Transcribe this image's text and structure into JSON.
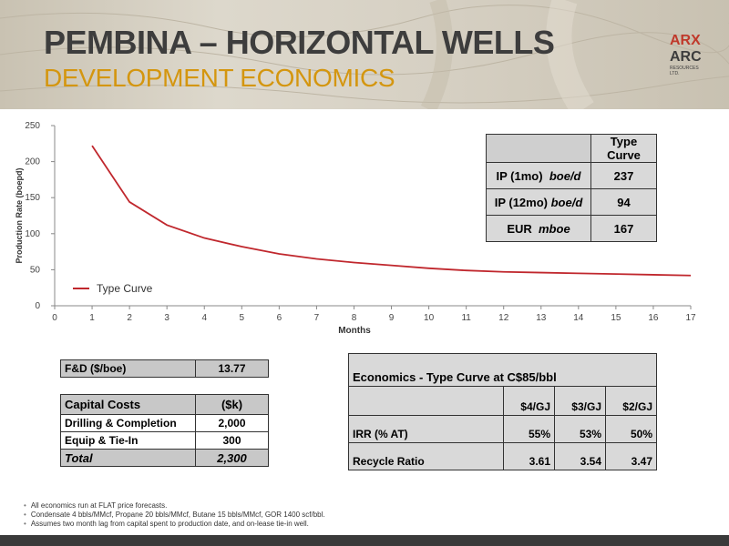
{
  "header": {
    "title": "PEMBINA – HORIZONTAL WELLS",
    "subtitle": "DEVELOPMENT ECONOMICS",
    "logo_top": "ARX",
    "logo_main": "ARC",
    "logo_sub1": "RESOURCES",
    "logo_sub2": "LTD."
  },
  "chart_data": {
    "type": "line",
    "title": "",
    "xlabel": "Months",
    "ylabel": "Production Rate (boepd)",
    "xlim": [
      0,
      17
    ],
    "ylim": [
      0,
      250
    ],
    "x_ticks": [
      0,
      1,
      2,
      3,
      4,
      5,
      6,
      7,
      8,
      9,
      10,
      11,
      12,
      13,
      14,
      15,
      16,
      17
    ],
    "y_ticks": [
      0,
      50,
      100,
      150,
      200,
      250
    ],
    "grid": false,
    "legend_position": "bottom-left",
    "series": [
      {
        "name": "Type Curve",
        "color": "#c0272d",
        "x": [
          1,
          2,
          3,
          4,
          5,
          6,
          7,
          8,
          9,
          10,
          11,
          12,
          13,
          14,
          15,
          16,
          17
        ],
        "y": [
          222,
          144,
          112,
          94,
          82,
          72,
          65,
          60,
          56,
          52,
          49,
          47,
          46,
          45,
          44,
          43,
          42
        ]
      }
    ]
  },
  "type_curve_table": {
    "header": "Type Curve",
    "rows": [
      {
        "label": "IP (1mo)",
        "unit": "boe/d",
        "value": "237"
      },
      {
        "label": "IP (12mo)",
        "unit": "boe/d",
        "value": "94"
      },
      {
        "label": "EUR",
        "unit": "mboe",
        "value": "167"
      }
    ]
  },
  "fd": {
    "label": "F&D ($/boe)",
    "value": "13.77"
  },
  "capital_costs": {
    "header_label": "Capital Costs",
    "header_value": "($k)",
    "rows": [
      {
        "label": "Drilling & Completion",
        "value": "2,000"
      },
      {
        "label": "Equip & Tie-In",
        "value": "300"
      }
    ],
    "total_label": "Total",
    "total_value": "2,300"
  },
  "economics": {
    "title": "Economics - Type Curve at C$85/bbl",
    "columns": [
      "$4/GJ",
      "$3/GJ",
      "$2/GJ"
    ],
    "rows": [
      {
        "label": "IRR (% AT)",
        "values": [
          "55%",
          "53%",
          "50%"
        ]
      },
      {
        "label": "Recycle Ratio",
        "values": [
          "3.61",
          "3.54",
          "3.47"
        ]
      }
    ]
  },
  "notes": [
    "All economics run at FLAT price forecasts.",
    "Condensate 4 bbls/MMcf,  Propane 20 bbls/MMcf, Butane 15 bbls/MMcf, GOR 1400 scf/bbl.",
    "Assumes two month lag from capital spent to production date, and on-lease tie-in well."
  ]
}
